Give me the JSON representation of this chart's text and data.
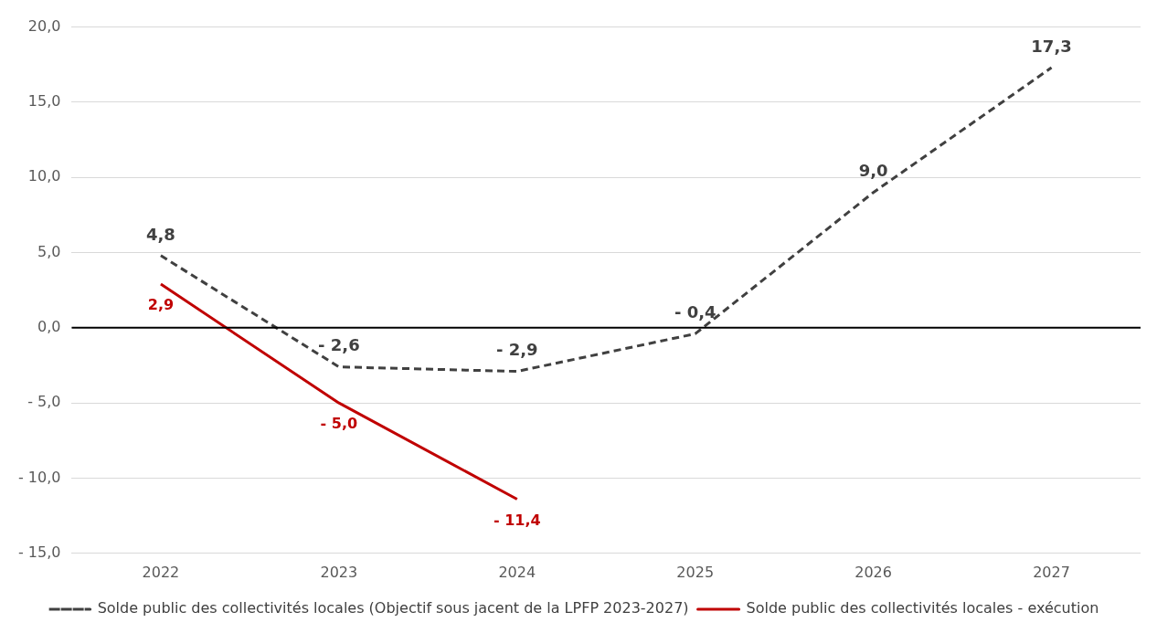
{
  "chart_data": {
    "type": "line",
    "categories": [
      "2022",
      "2023",
      "2024",
      "2025",
      "2026",
      "2027"
    ],
    "series": [
      {
        "name": "Solde public des collectivités locales (Objectif sous jacent de la LPFP 2023-2027)",
        "color": "#404040",
        "line_style": "dashed",
        "values": [
          4.8,
          -2.6,
          -2.9,
          -0.4,
          9.0,
          17.3
        ],
        "value_labels": [
          "4,8",
          "- 2,6",
          "- 2,9",
          "- 0,4",
          "9,0",
          "17,3"
        ]
      },
      {
        "name": "Solde public des collectivités locales - exécution",
        "color": "#c00000",
        "line_style": "solid",
        "values": [
          2.9,
          -5.0,
          -11.4,
          null,
          null,
          null
        ],
        "value_labels": [
          "2,9",
          "- 5,0",
          "- 11,4",
          null,
          null,
          null
        ]
      }
    ],
    "ylim": [
      -15,
      20
    ],
    "yticks": [
      {
        "value": -15,
        "label": "- 15,0"
      },
      {
        "value": -10,
        "label": "- 10,0"
      },
      {
        "value": -5,
        "label": "- 5,0"
      },
      {
        "value": 0,
        "label": "0,0"
      },
      {
        "value": 5,
        "label": "5,0"
      },
      {
        "value": 10,
        "label": "10,0"
      },
      {
        "value": 15,
        "label": "15,0"
      },
      {
        "value": 20,
        "label": "20,0"
      }
    ],
    "ref_lines": [
      {
        "axis": "y",
        "value": 0,
        "color": "#000000"
      }
    ],
    "grid": "y",
    "legend": "bottom",
    "marker": "none"
  }
}
